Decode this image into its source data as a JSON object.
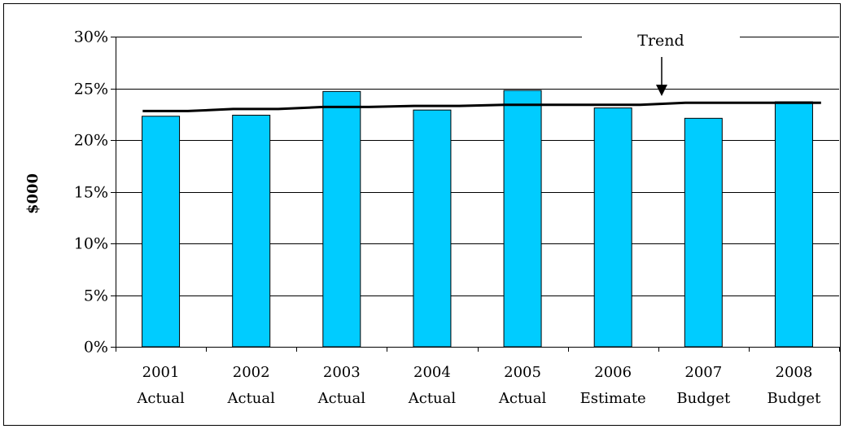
{
  "chart_data": {
    "type": "bar",
    "ylabel": "$000",
    "xlabel": "",
    "ylim": [
      0,
      0.3
    ],
    "y_ticks": [
      "0%",
      "5%",
      "10%",
      "15%",
      "20%",
      "25%",
      "30%"
    ],
    "y_tick_values": [
      0,
      0.05,
      0.1,
      0.15,
      0.2,
      0.25,
      0.3
    ],
    "categories": [
      {
        "year": "2001",
        "label": "Actual"
      },
      {
        "year": "2002",
        "label": "Actual"
      },
      {
        "year": "2003",
        "label": "Actual"
      },
      {
        "year": "2004",
        "label": "Actual"
      },
      {
        "year": "2005",
        "label": "Actual"
      },
      {
        "year": "2006",
        "label": "Estimate"
      },
      {
        "year": "2007",
        "label": "Budget"
      },
      {
        "year": "2008",
        "label": "Budget"
      }
    ],
    "values": [
      0.223,
      0.224,
      0.247,
      0.229,
      0.248,
      0.231,
      0.221,
      0.237
    ],
    "trend": {
      "label": "Trend",
      "values": [
        0.228,
        0.23,
        0.232,
        0.233,
        0.234,
        0.234,
        0.236,
        0.236
      ]
    },
    "grid": true,
    "bar_color": "#00CCFF",
    "trend_color": "#000000"
  }
}
